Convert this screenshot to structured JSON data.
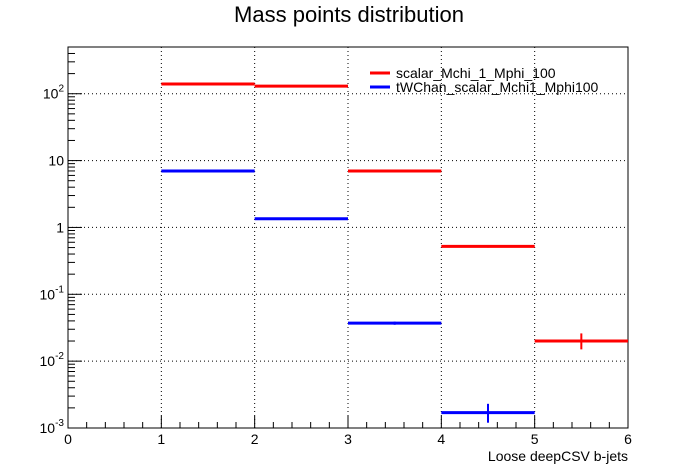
{
  "chart_data": {
    "type": "histogram",
    "title": "Mass points distribution",
    "xlabel": "Loose deepCSV b-jets",
    "ylabel": "",
    "xlim": [
      0,
      6
    ],
    "ylim": [
      0.001,
      500
    ],
    "yscale": "log",
    "grid": true,
    "legend_position": "top-right",
    "x_ticks": [
      "0",
      "1",
      "2",
      "3",
      "4",
      "5",
      "6"
    ],
    "y_ticks": [
      {
        "value": 0.001,
        "base": "10",
        "exp": "-3"
      },
      {
        "value": 0.01,
        "base": "10",
        "exp": "-2"
      },
      {
        "value": 0.1,
        "base": "10",
        "exp": "-1"
      },
      {
        "value": 1,
        "base": "1",
        "exp": ""
      },
      {
        "value": 10,
        "base": "10",
        "exp": ""
      },
      {
        "value": 100,
        "base": "10",
        "exp": "2"
      }
    ],
    "series": [
      {
        "name": "scalar_Mchi_1_Mphi_100",
        "color": "#ff0000",
        "bins": [
          {
            "x_low": 1,
            "x_high": 2,
            "y": 140,
            "err_low": 138,
            "err_high": 142
          },
          {
            "x_low": 2,
            "x_high": 3,
            "y": 130,
            "err_low": 128,
            "err_high": 132
          },
          {
            "x_low": 3,
            "x_high": 4,
            "y": 7.0,
            "err_low": 6.9,
            "err_high": 7.1
          },
          {
            "x_low": 4,
            "x_high": 5,
            "y": 0.52,
            "err_low": 0.5,
            "err_high": 0.54
          },
          {
            "x_low": 5,
            "x_high": 6,
            "y": 0.02,
            "err_low": 0.015,
            "err_high": 0.026
          }
        ]
      },
      {
        "name": "tWChan_scalar_Mchi1_Mphi100",
        "color": "#0000ff",
        "bins": [
          {
            "x_low": 1,
            "x_high": 2,
            "y": 7.0,
            "err_low": 6.9,
            "err_high": 7.1
          },
          {
            "x_low": 2,
            "x_high": 3,
            "y": 1.35,
            "err_low": 1.33,
            "err_high": 1.37
          },
          {
            "x_low": 3,
            "x_high": 4,
            "y": 0.037,
            "err_low": 0.035,
            "err_high": 0.039
          },
          {
            "x_low": 4,
            "x_high": 5,
            "y": 0.0017,
            "err_low": 0.0012,
            "err_high": 0.0023
          }
        ]
      }
    ]
  }
}
